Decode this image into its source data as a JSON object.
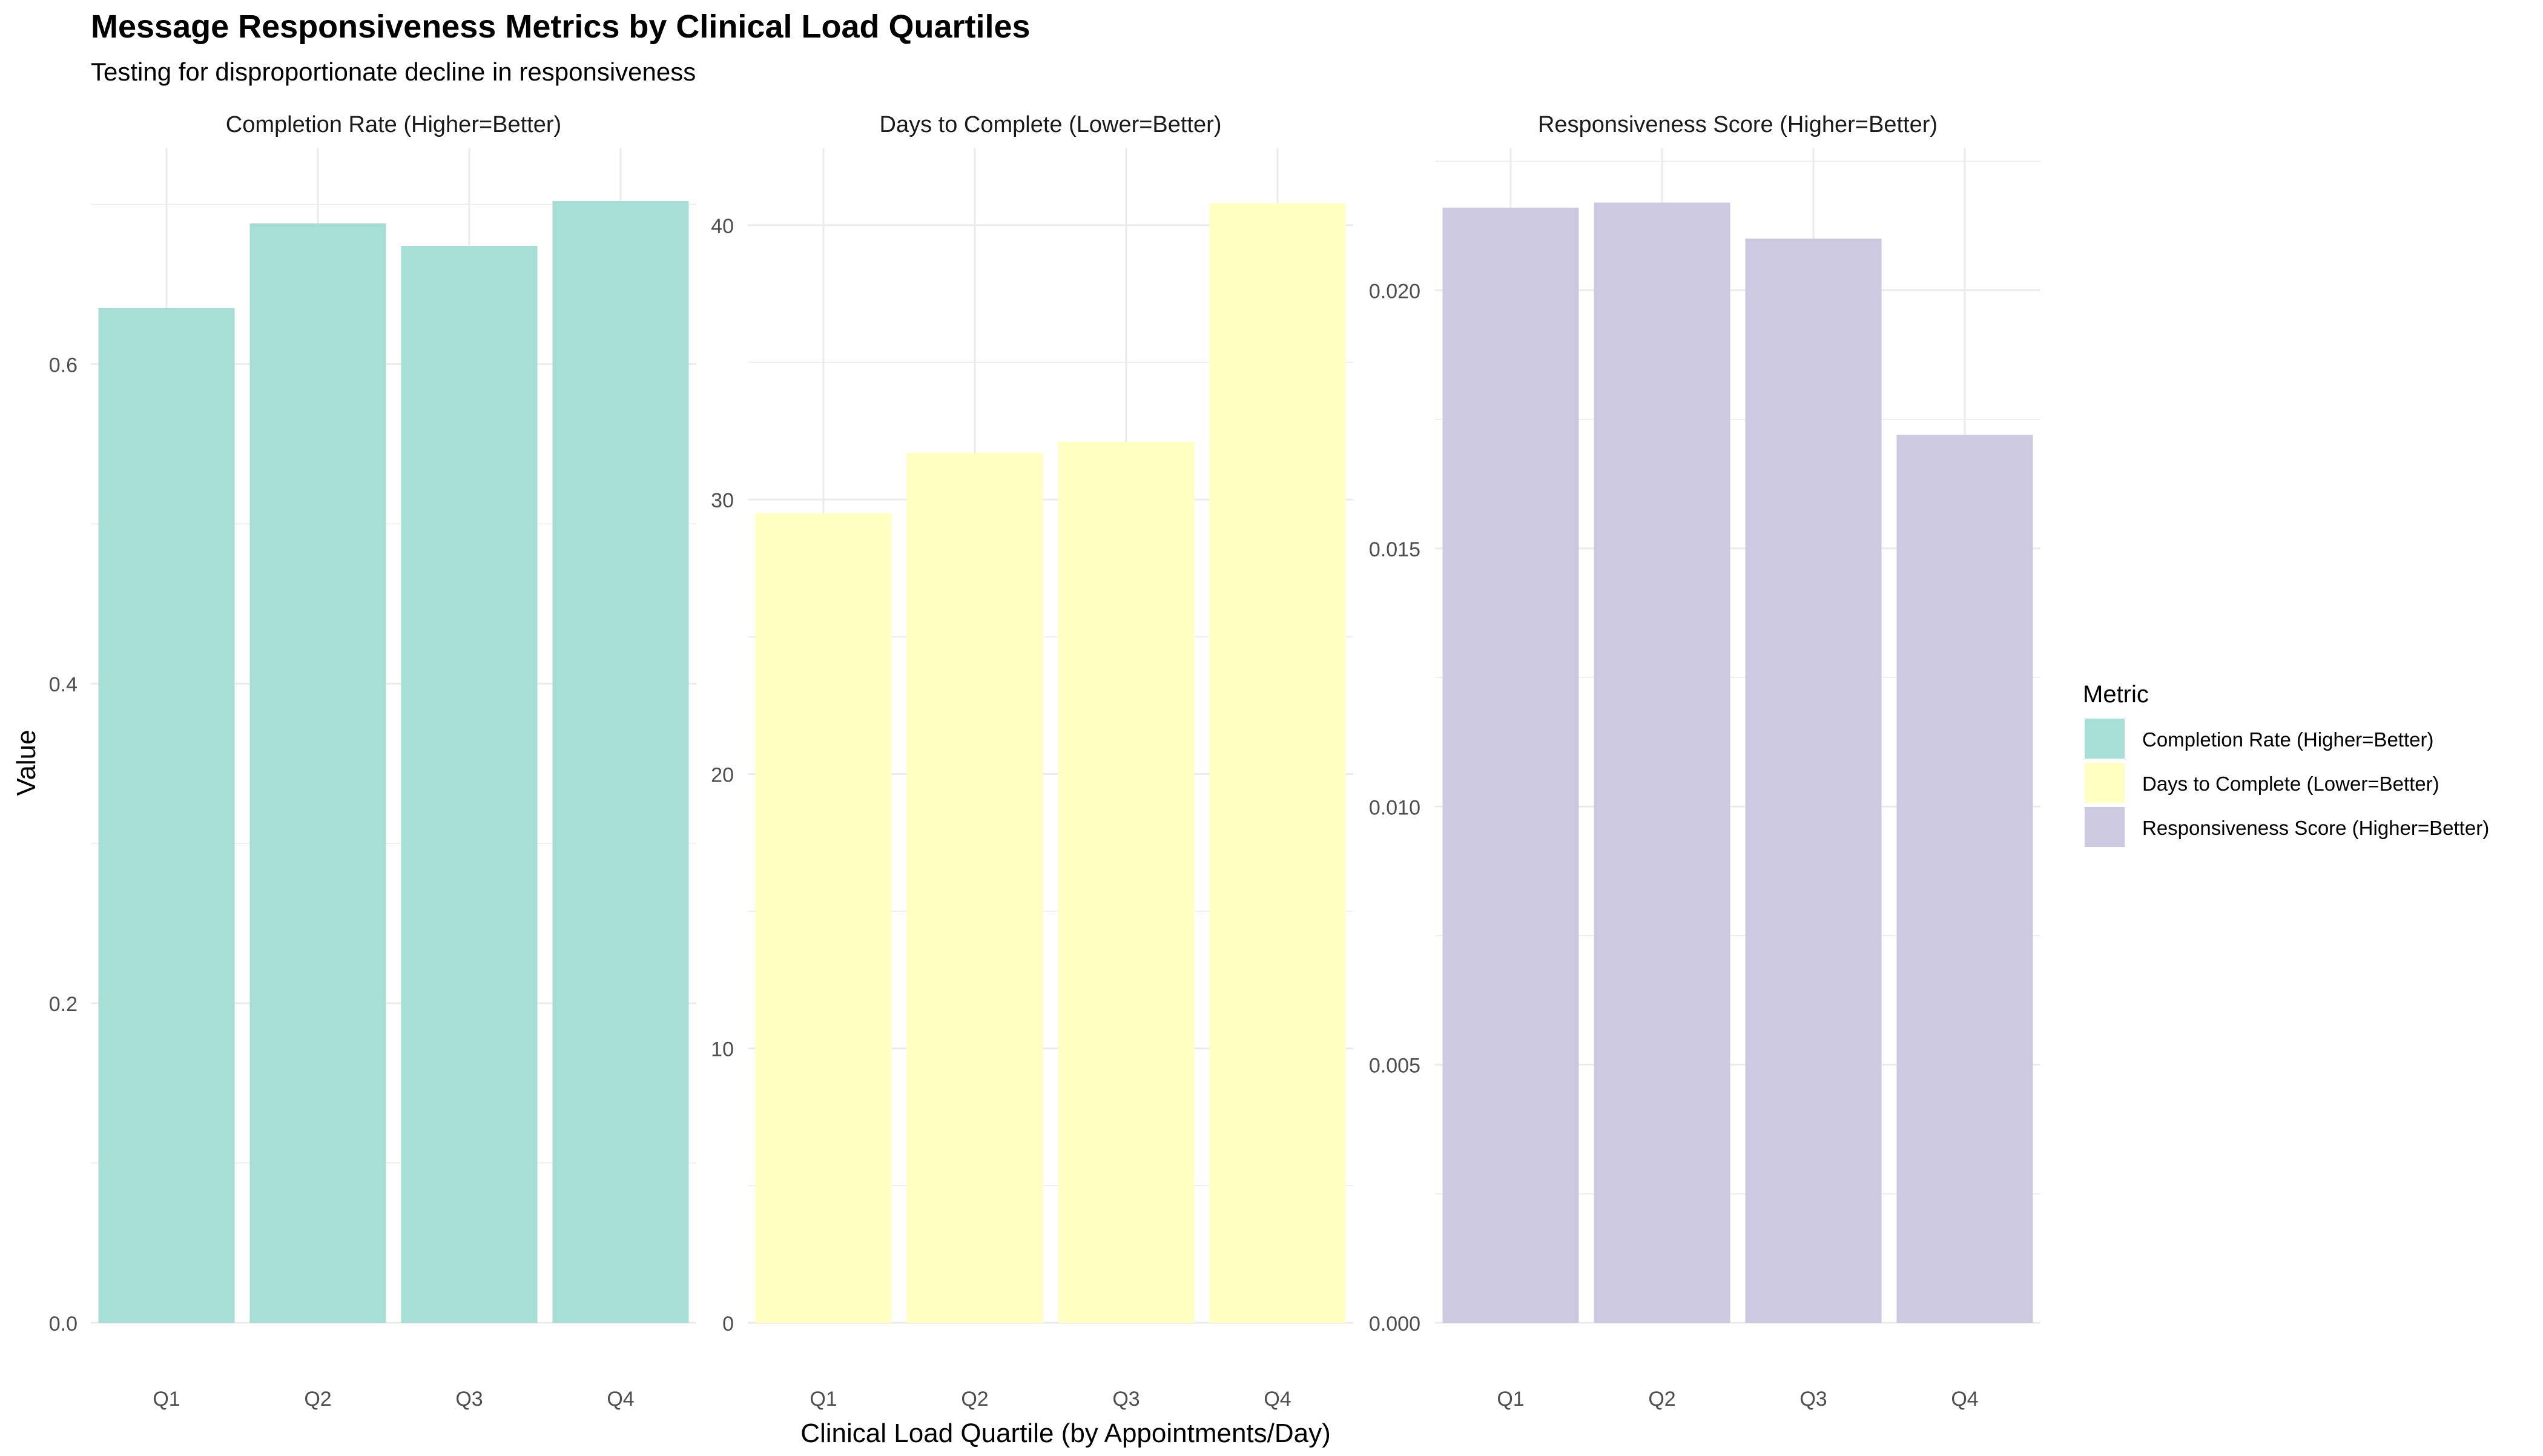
{
  "chart_data": {
    "type": "bar",
    "title": "Message Responsiveness Metrics by Clinical Load Quartiles",
    "subtitle": "Testing for disproportionate decline in responsiveness",
    "xlabel": "Clinical Load Quartile (by Appointments/Day)",
    "ylabel": "Value",
    "categories": [
      "Q1",
      "Q2",
      "Q3",
      "Q4"
    ],
    "grid": true,
    "legend": {
      "title": "Metric",
      "position": "right",
      "entries": [
        "Completion Rate (Higher=Better)",
        "Days to Complete (Lower=Better)",
        "Responsiveness Score (Higher=Better)"
      ]
    },
    "panels": [
      {
        "name": "Completion Rate (Higher=Better)",
        "color": "#A6DDD4",
        "values": [
          0.635,
          0.688,
          0.674,
          0.702
        ],
        "ylim": [
          0,
          0.735
        ],
        "yticks": [
          0.0,
          0.2,
          0.4,
          0.6
        ],
        "tick_labels": [
          "0.0",
          "0.2",
          "0.4",
          "0.6"
        ]
      },
      {
        "name": "Days to Complete (Lower=Better)",
        "color": "#FFFFC2",
        "values": [
          29.5,
          31.7,
          32.1,
          40.8
        ],
        "ylim": [
          0,
          42.8
        ],
        "yticks": [
          0,
          10,
          20,
          30,
          40
        ],
        "tick_labels": [
          "0",
          "10",
          "20",
          "30",
          "40"
        ]
      },
      {
        "name": "Responsiveness Score (Higher=Better)",
        "color": "#CBC8E0",
        "values": [
          0.0216,
          0.0217,
          0.021,
          0.0172
        ],
        "ylim": [
          0,
          0.02275
        ],
        "yticks": [
          0.0,
          0.005,
          0.01,
          0.015,
          0.02
        ],
        "tick_labels": [
          "0.000",
          "0.005",
          "0.010",
          "0.015",
          "0.020"
        ]
      }
    ]
  }
}
